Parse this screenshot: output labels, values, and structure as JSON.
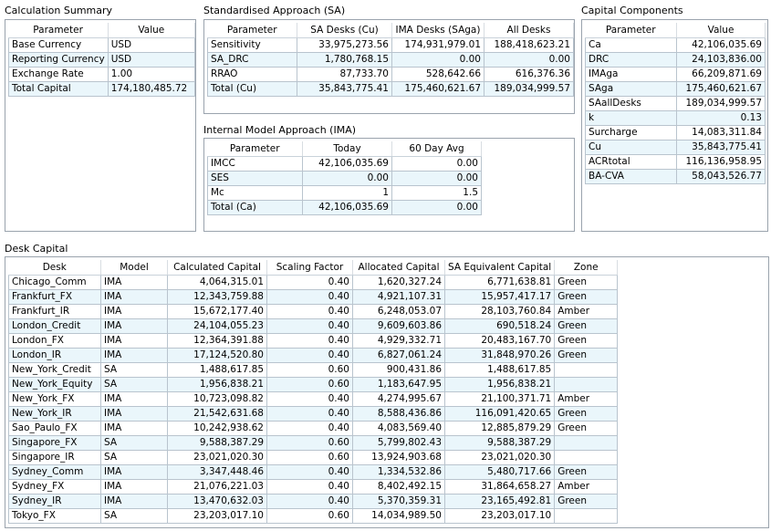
{
  "calc_summary": {
    "title": "Calculation Summary",
    "headers": [
      "Parameter",
      "Value"
    ],
    "rows": [
      [
        "Base Currency",
        "USD"
      ],
      [
        "Reporting Currency",
        "USD"
      ],
      [
        "Exchange Rate",
        "1.00"
      ],
      [
        "Total Capital",
        "174,180,485.72"
      ]
    ]
  },
  "sa": {
    "title": "Standardised Approach (SA)",
    "headers": [
      "Parameter",
      "SA Desks (Cu)",
      "IMA Desks (SAga)",
      "All Desks"
    ],
    "rows": [
      [
        "Sensitivity",
        "33,975,273.56",
        "174,931,979.01",
        "188,418,623.21"
      ],
      [
        "SA_DRC",
        "1,780,768.15",
        "0.00",
        "0.00"
      ],
      [
        "RRAO",
        "87,733.70",
        "528,642.66",
        "616,376.36"
      ],
      [
        "Total (Cu)",
        "35,843,775.41",
        "175,460,621.67",
        "189,034,999.57"
      ]
    ]
  },
  "ima": {
    "title": "Internal Model Approach (IMA)",
    "headers": [
      "Parameter",
      "Today",
      "60 Day Avg"
    ],
    "rows": [
      [
        "IMCC",
        "42,106,035.69",
        "0.00"
      ],
      [
        "SES",
        "0.00",
        "0.00"
      ],
      [
        "Mc",
        "1",
        "1.5"
      ],
      [
        "Total (Ca)",
        "42,106,035.69",
        "0.00"
      ]
    ]
  },
  "capital_components": {
    "title": "Capital Components",
    "headers": [
      "Parameter",
      "Value"
    ],
    "rows": [
      [
        "Ca",
        "42,106,035.69"
      ],
      [
        "DRC",
        "24,103,836.00"
      ],
      [
        "IMAga",
        "66,209,871.69"
      ],
      [
        "SAga",
        "175,460,621.67"
      ],
      [
        "SAallDesks",
        "189,034,999.57"
      ],
      [
        "k",
        "0.13"
      ],
      [
        "Surcharge",
        "14,083,311.84"
      ],
      [
        "Cu",
        "35,843,775.41"
      ],
      [
        "ACRtotal",
        "116,136,958.95"
      ],
      [
        "BA-CVA",
        "58,043,526.77"
      ]
    ]
  },
  "desk_capital": {
    "title": "Desk Capital",
    "headers": [
      "Desk",
      "Model",
      "Calculated Capital",
      "Scaling Factor",
      "Allocated Capital",
      "SA Equivalent Capital",
      "Zone"
    ],
    "rows": [
      [
        "Chicago_Comm",
        "IMA",
        "4,064,315.01",
        "0.40",
        "1,620,327.24",
        "6,771,638.81",
        "Green"
      ],
      [
        "Frankfurt_FX",
        "IMA",
        "12,343,759.88",
        "0.40",
        "4,921,107.31",
        "15,957,417.17",
        "Green"
      ],
      [
        "Frankfurt_IR",
        "IMA",
        "15,672,177.40",
        "0.40",
        "6,248,053.07",
        "28,103,760.84",
        "Amber"
      ],
      [
        "London_Credit",
        "IMA",
        "24,104,055.23",
        "0.40",
        "9,609,603.86",
        "690,518.24",
        "Green"
      ],
      [
        "London_FX",
        "IMA",
        "12,364,391.88",
        "0.40",
        "4,929,332.71",
        "20,483,167.70",
        "Green"
      ],
      [
        "London_IR",
        "IMA",
        "17,124,520.80",
        "0.40",
        "6,827,061.24",
        "31,848,970.26",
        "Green"
      ],
      [
        "New_York_Credit",
        "SA",
        "1,488,617.85",
        "0.60",
        "900,431.86",
        "1,488,617.85",
        ""
      ],
      [
        "New_York_Equity",
        "SA",
        "1,956,838.21",
        "0.60",
        "1,183,647.95",
        "1,956,838.21",
        ""
      ],
      [
        "New_York_FX",
        "IMA",
        "10,723,098.82",
        "0.40",
        "4,274,995.67",
        "21,100,371.71",
        "Amber"
      ],
      [
        "New_York_IR",
        "IMA",
        "21,542,631.68",
        "0.40",
        "8,588,436.86",
        "116,091,420.65",
        "Green"
      ],
      [
        "Sao_Paulo_FX",
        "IMA",
        "10,242,938.62",
        "0.40",
        "4,083,569.40",
        "12,885,879.29",
        "Green"
      ],
      [
        "Singapore_FX",
        "SA",
        "9,588,387.29",
        "0.60",
        "5,799,802.43",
        "9,588,387.29",
        ""
      ],
      [
        "Singapore_IR",
        "SA",
        "23,021,020.30",
        "0.60",
        "13,924,903.68",
        "23,021,020.30",
        ""
      ],
      [
        "Sydney_Comm",
        "IMA",
        "3,347,448.46",
        "0.40",
        "1,334,532.86",
        "5,480,717.66",
        "Green"
      ],
      [
        "Sydney_FX",
        "IMA",
        "21,076,221.03",
        "0.40",
        "8,402,492.15",
        "31,864,658.27",
        "Amber"
      ],
      [
        "Sydney_IR",
        "IMA",
        "13,470,632.03",
        "0.40",
        "5,370,359.31",
        "23,165,492.81",
        "Green"
      ],
      [
        "Tokyo_FX",
        "SA",
        "23,203,017.10",
        "0.60",
        "14,034,989.50",
        "23,203,017.10",
        ""
      ]
    ]
  }
}
